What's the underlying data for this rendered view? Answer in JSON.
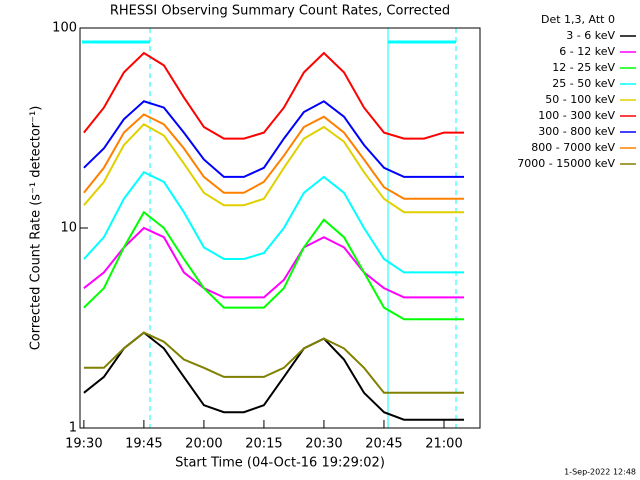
{
  "chart_data": {
    "type": "line",
    "title": "RHESSI Observing Summary Count Rates, Corrected",
    "x_label": "Start Time (04-Oct-16 19:29:02)",
    "y_label": "Corrected Count Rate (s⁻¹ detector⁻¹)",
    "legend_title": "Det 1,3, Att 0",
    "footer": "1-Sep-2022 12:48",
    "log_y": true,
    "x": [
      "19:30",
      "19:35",
      "19:40",
      "19:45",
      "19:50",
      "19:55",
      "20:00",
      "20:05",
      "20:10",
      "20:15",
      "20:20",
      "20:25",
      "20:30",
      "20:35",
      "20:40",
      "20:45",
      "20:50",
      "20:55",
      "21:00",
      "21:05"
    ],
    "xlim": [
      "19:29:02",
      "21:09"
    ],
    "xticks": [
      "19:30",
      "19:45",
      "20:00",
      "20:15",
      "20:30",
      "20:45",
      "21:00"
    ],
    "ylim": [
      1,
      100
    ],
    "yticks": [
      1,
      10,
      100
    ],
    "series": [
      {
        "name": "3 - 6 keV",
        "color": "#000000",
        "values": [
          1.5,
          1.8,
          2.5,
          3,
          2.5,
          1.8,
          1.3,
          1.2,
          1.2,
          1.3,
          1.8,
          2.5,
          2.8,
          2.2,
          1.5,
          1.2,
          1.1,
          1.1,
          1.1,
          1.1
        ]
      },
      {
        "name": "6 - 12 keV",
        "color": "#ff00ff",
        "values": [
          5,
          6,
          8,
          10,
          9,
          6,
          5,
          4.5,
          4.5,
          4.5,
          5.5,
          8,
          9,
          8,
          6,
          5,
          4.5,
          4.5,
          4.5,
          4.5
        ]
      },
      {
        "name": "12 - 25 keV",
        "color": "#00ff00",
        "values": [
          4,
          5,
          8,
          12,
          10,
          7,
          5,
          4,
          4,
          4,
          5,
          8,
          11,
          9,
          6,
          4,
          3.5,
          3.5,
          3.5,
          3.5
        ]
      },
      {
        "name": "25 - 50 keV",
        "color": "#00ffff",
        "values": [
          7,
          9,
          14,
          19,
          17,
          12,
          8,
          7,
          7,
          7.5,
          10,
          15,
          18,
          15,
          10,
          7,
          6,
          6,
          6,
          6
        ]
      },
      {
        "name": "50 - 100 keV",
        "color": "#e0d000",
        "values": [
          13,
          17,
          26,
          33,
          29,
          21,
          15,
          13,
          13,
          14,
          20,
          28,
          32,
          27,
          19,
          14,
          12,
          12,
          12,
          12
        ]
      },
      {
        "name": "100 - 300 keV",
        "color": "#ff0000",
        "values": [
          30,
          40,
          60,
          75,
          65,
          45,
          32,
          28,
          28,
          30,
          40,
          60,
          75,
          60,
          40,
          30,
          28,
          28,
          30,
          30
        ]
      },
      {
        "name": "300 - 800 keV",
        "color": "#0000ff",
        "values": [
          20,
          25,
          35,
          43,
          40,
          30,
          22,
          18,
          18,
          20,
          28,
          38,
          43,
          36,
          26,
          20,
          18,
          18,
          18,
          18
        ]
      },
      {
        "name": "800 - 7000 keV",
        "color": "#ff8000",
        "values": [
          15,
          20,
          30,
          37,
          33,
          25,
          18,
          15,
          15,
          17,
          23,
          32,
          36,
          30,
          22,
          16,
          14,
          14,
          14,
          14
        ]
      },
      {
        "name": "7000 - 15000 keV",
        "color": "#808000",
        "values": [
          2,
          2,
          2.5,
          3,
          2.7,
          2.2,
          2,
          1.8,
          1.8,
          1.8,
          2,
          2.5,
          2.8,
          2.5,
          2,
          1.5,
          1.5,
          1.5,
          1.5,
          1.5
        ]
      }
    ]
  }
}
